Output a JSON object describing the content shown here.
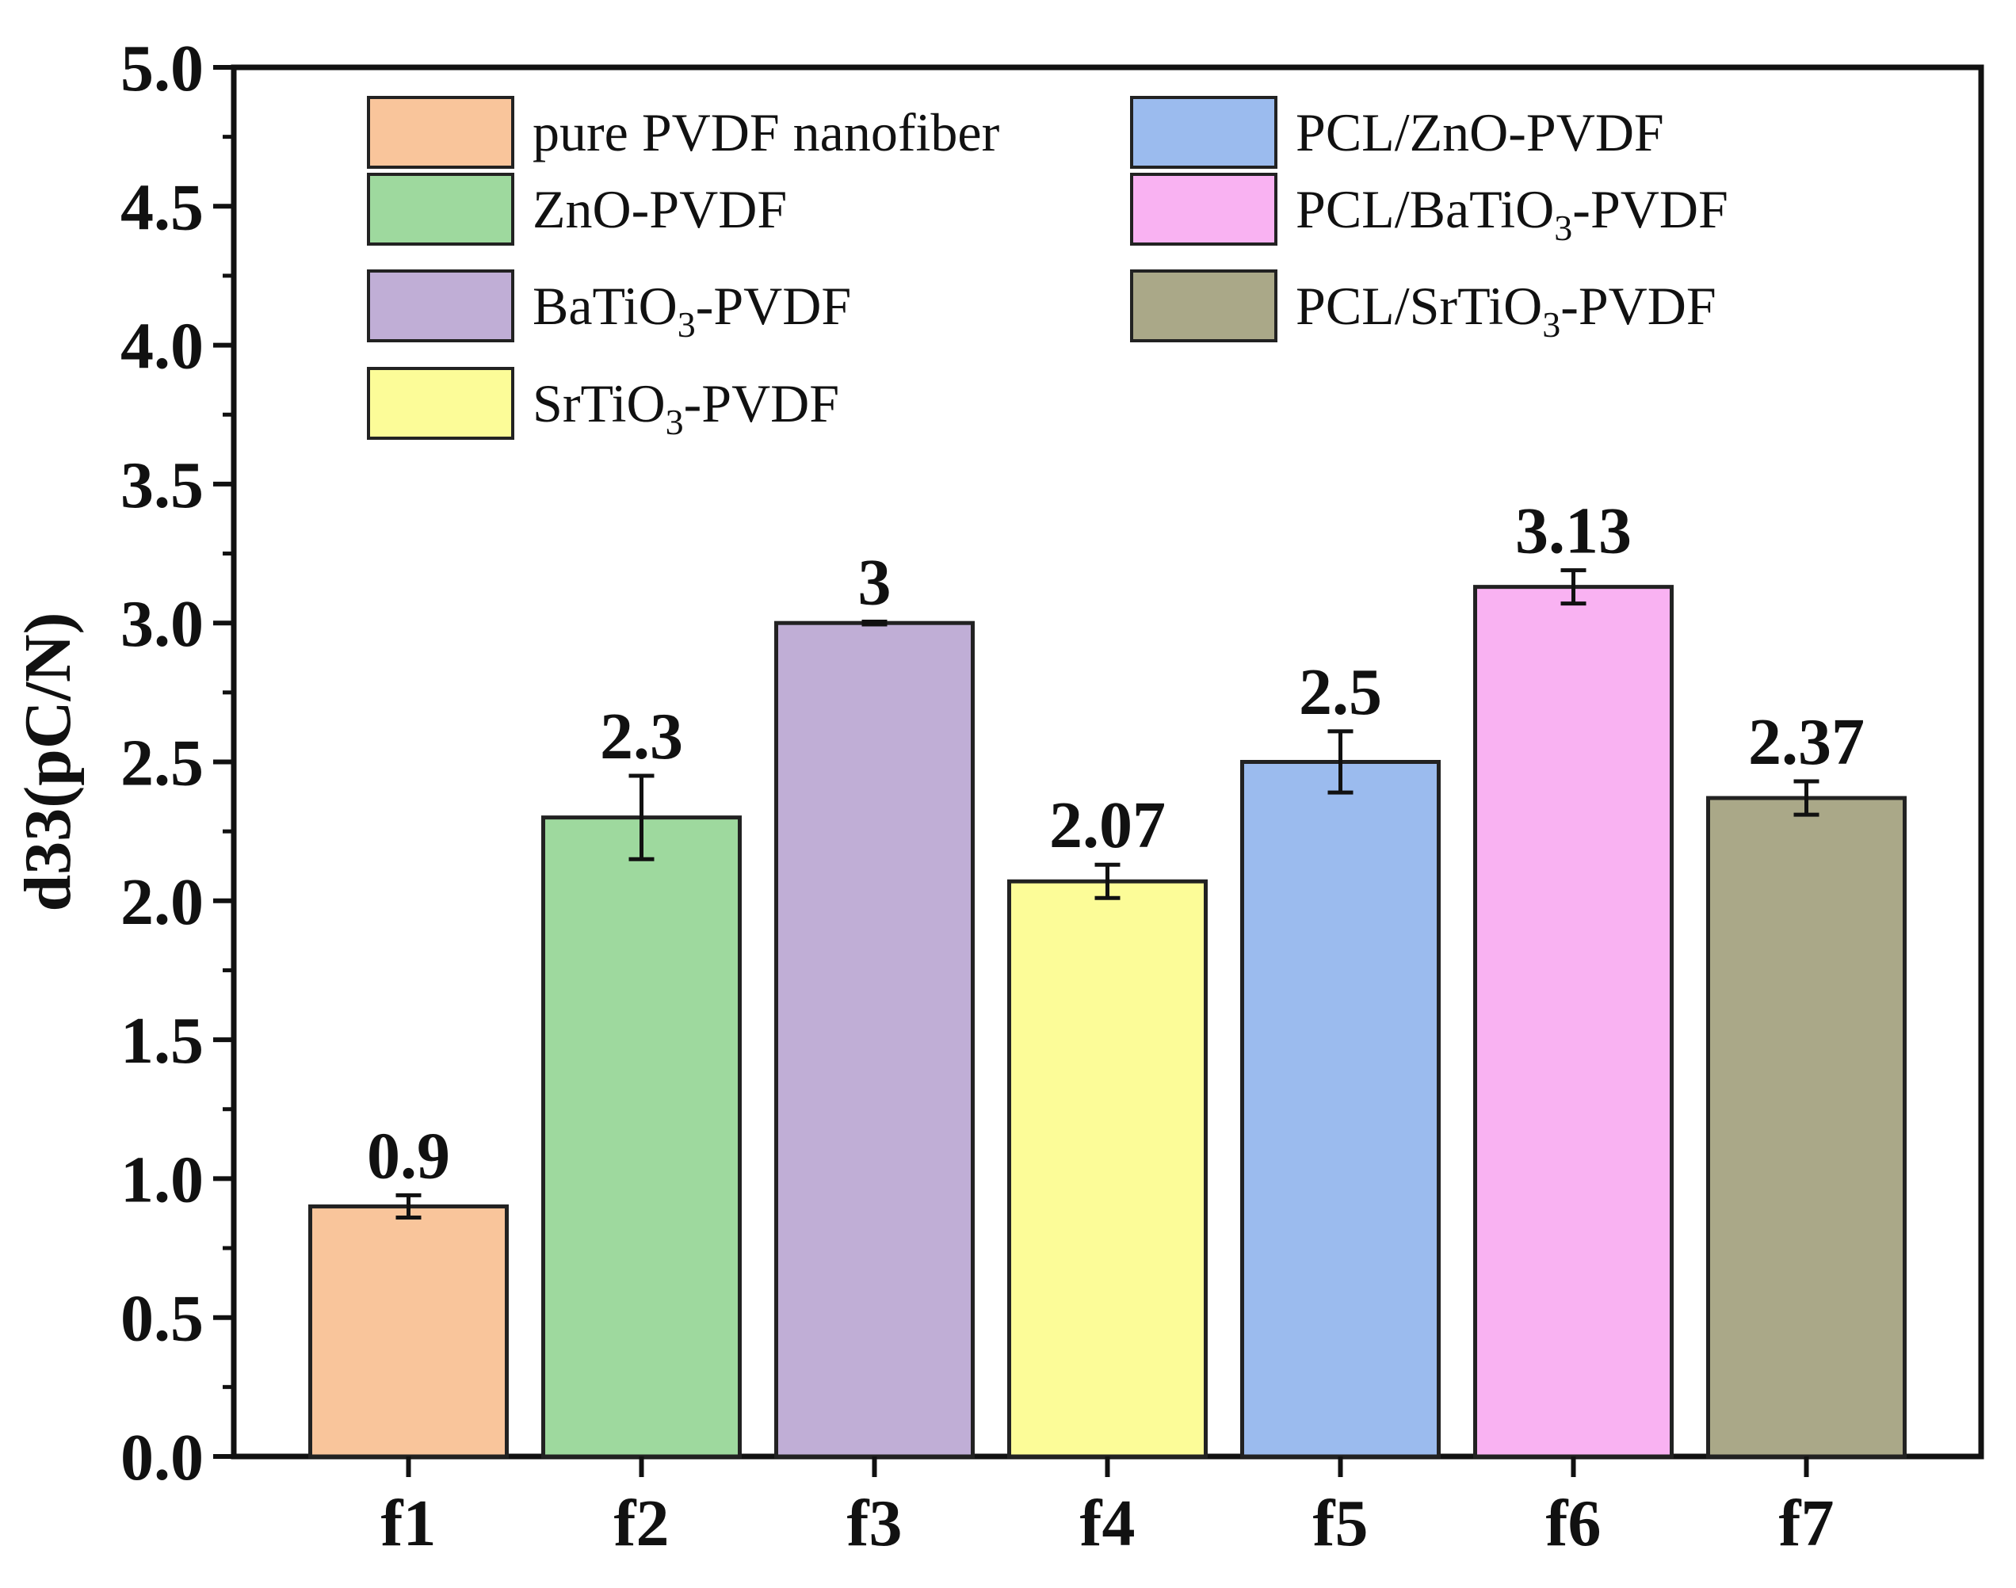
{
  "chart_data": {
    "type": "bar",
    "title": "",
    "xlabel": "",
    "ylabel": "d33(pC/N)",
    "ylim": [
      0.0,
      5.0
    ],
    "yticks": [
      "0.0",
      "0.5",
      "1.0",
      "1.5",
      "2.0",
      "2.5",
      "3.0",
      "3.5",
      "4.0",
      "4.5",
      "5.0"
    ],
    "grid": false,
    "legend_position": "top-left",
    "categories": [
      "f1",
      "f2",
      "f3",
      "f4",
      "f5",
      "f6",
      "f7"
    ],
    "values": [
      0.9,
      2.3,
      3.0,
      2.07,
      2.5,
      3.13,
      2.37
    ],
    "errors": [
      0.04,
      0.15,
      0.005,
      0.06,
      0.11,
      0.06,
      0.06
    ],
    "value_labels": [
      "0.9",
      "2.3",
      "3",
      "2.07",
      "2.5",
      "3.13",
      "2.37"
    ],
    "colors": [
      "#f9c59b",
      "#9ed99e",
      "#c0aed6",
      "#fcfc98",
      "#9bbbee",
      "#f9b2f2",
      "#aaa888"
    ],
    "legend": [
      {
        "base": "pure PVDF nanofiber",
        "sub": "",
        "suffix": ""
      },
      {
        "base": "ZnO-PVDF",
        "sub": "",
        "suffix": ""
      },
      {
        "base": "BaTiO",
        "sub": "3",
        "suffix": "-PVDF"
      },
      {
        "base": "SrTiO",
        "sub": "3",
        "suffix": "-PVDF"
      },
      {
        "base": "PCL/ZnO-PVDF",
        "sub": "",
        "suffix": ""
      },
      {
        "base": "PCL/BaTiO",
        "sub": "3",
        "suffix": "-PVDF"
      },
      {
        "base": "PCL/SrTiO",
        "sub": "3",
        "suffix": "-PVDF"
      }
    ]
  }
}
